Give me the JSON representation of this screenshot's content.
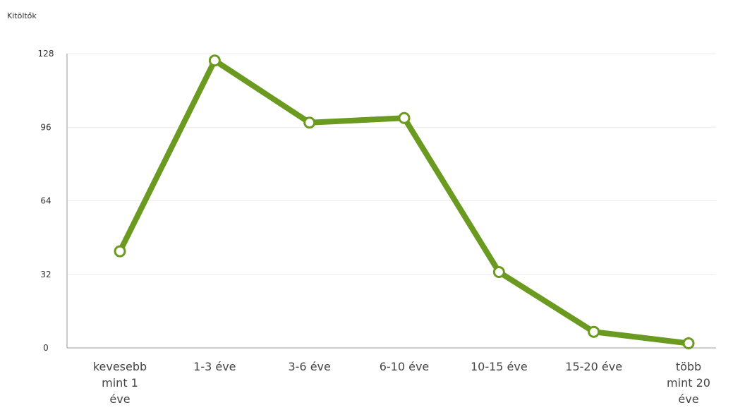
{
  "chart_data": {
    "type": "line",
    "ylabel": "Kitöltők",
    "xlabel": "",
    "categories": [
      [
        "kevesebb",
        "mint 1",
        "éve"
      ],
      [
        "1-3 éve"
      ],
      [
        "3-6 éve"
      ],
      [
        "6-10 éve"
      ],
      [
        "10-15 éve"
      ],
      [
        "15-20 éve"
      ],
      [
        "több",
        "mint 20",
        "éve"
      ]
    ],
    "series": [
      {
        "values": [
          42,
          125,
          98,
          100,
          33,
          7,
          2
        ],
        "color": "#6a9a1f"
      }
    ],
    "ylim": [
      0,
      128
    ],
    "yticks": [
      0,
      32,
      64,
      96,
      128
    ],
    "grid": true
  }
}
